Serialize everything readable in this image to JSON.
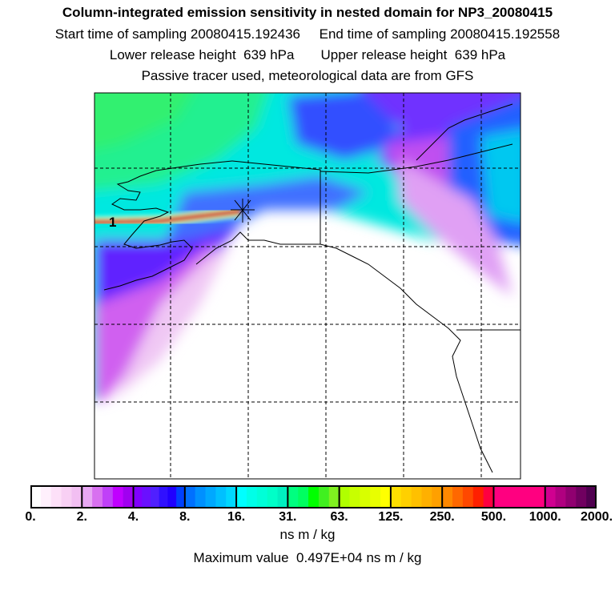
{
  "title": "Column-integrated emission sensitivity in nested domain for NP3_20080415",
  "line2": "Start time of sampling 20080415.192436     End time of sampling 20080415.192558",
  "line3": "Lower release height  639 hPa       Upper release height  639 hPa",
  "line4": "Passive tracer used, meteorological data are from GFS",
  "release_marker_label": "1",
  "colorbar": {
    "labels": [
      "0.",
      "2.",
      "4.",
      "8.",
      "16.",
      "31.",
      "63.",
      "125.",
      "250.",
      "500.",
      "1000.",
      "2000."
    ],
    "segments": [
      [
        "#ffffff",
        "#fff0fc",
        "#fde0f8",
        "#f8d0f4",
        "#f2bff2"
      ],
      [
        "#e8a8f4",
        "#d870f0",
        "#c040f8",
        "#c000ff",
        "#a000f0"
      ],
      [
        "#8000ff",
        "#6a10ff",
        "#5020ff",
        "#3010ff",
        "#2000ff",
        "#0040ff"
      ],
      [
        "#0070ff",
        "#0090ff",
        "#00a8ff",
        "#00c0ff",
        "#00d8ff"
      ],
      [
        "#00ffff",
        "#00ffe8",
        "#00ffd8",
        "#00ffc8",
        "#00f0c0"
      ],
      [
        "#00ff80",
        "#00ff60",
        "#00ff00",
        "#40f020",
        "#80f020"
      ],
      [
        "#b0ff00",
        "#c8ff00",
        "#d8ff00",
        "#e8ff00",
        "#ffff00"
      ],
      [
        "#ffe000",
        "#ffd000",
        "#ffc000",
        "#ffb000",
        "#ffa000"
      ],
      [
        "#ff8800",
        "#ff6800",
        "#ff4800",
        "#ff2000",
        "#ff0040"
      ],
      [
        "#ff0080",
        "#ff0080",
        "#ff0080",
        "#ff0080",
        "#ff0080"
      ],
      [
        "#d00090",
        "#b00080",
        "#900070",
        "#700060",
        "#500050"
      ]
    ]
  },
  "units": "ns m / kg",
  "max_value": "Maximum value  0.497E+04 ns m / kg"
}
